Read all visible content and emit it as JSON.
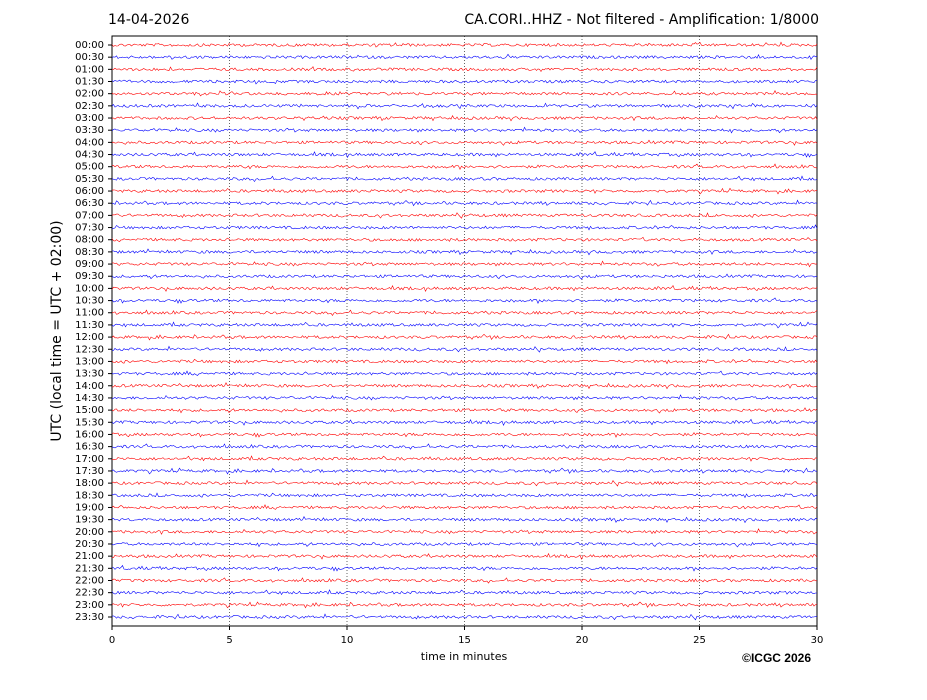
{
  "chart_data": {
    "type": "helicorder",
    "title_left": "14-04-2026",
    "title": "CA.CORI..HHZ - Not filtered - Amplification: 1/8000",
    "y_label": "UTC (local time = UTC + 02:00)",
    "x_label": "time in minutes",
    "credit": "©ICGC 2026",
    "categories": [
      "00:00",
      "00:30",
      "01:00",
      "01:30",
      "02:00",
      "02:30",
      "03:00",
      "03:30",
      "04:00",
      "04:30",
      "05:00",
      "05:30",
      "06:00",
      "06:30",
      "07:00",
      "07:30",
      "08:00",
      "08:30",
      "09:00",
      "09:30",
      "10:00",
      "10:30",
      "11:00",
      "11:30",
      "12:00",
      "12:30",
      "13:00",
      "13:30",
      "14:00",
      "14:30",
      "15:00",
      "15:30",
      "16:00",
      "16:30",
      "17:00",
      "17:30",
      "18:00",
      "18:30",
      "19:00",
      "19:30",
      "20:00",
      "20:30",
      "21:00",
      "21:30",
      "22:00",
      "22:30",
      "23:00",
      "23:30"
    ],
    "colors": [
      "#ff0000",
      "#0000ff"
    ],
    "xlim": [
      0,
      30
    ],
    "xticks": [
      0,
      5,
      10,
      15,
      20,
      25,
      30
    ],
    "grid": true
  }
}
